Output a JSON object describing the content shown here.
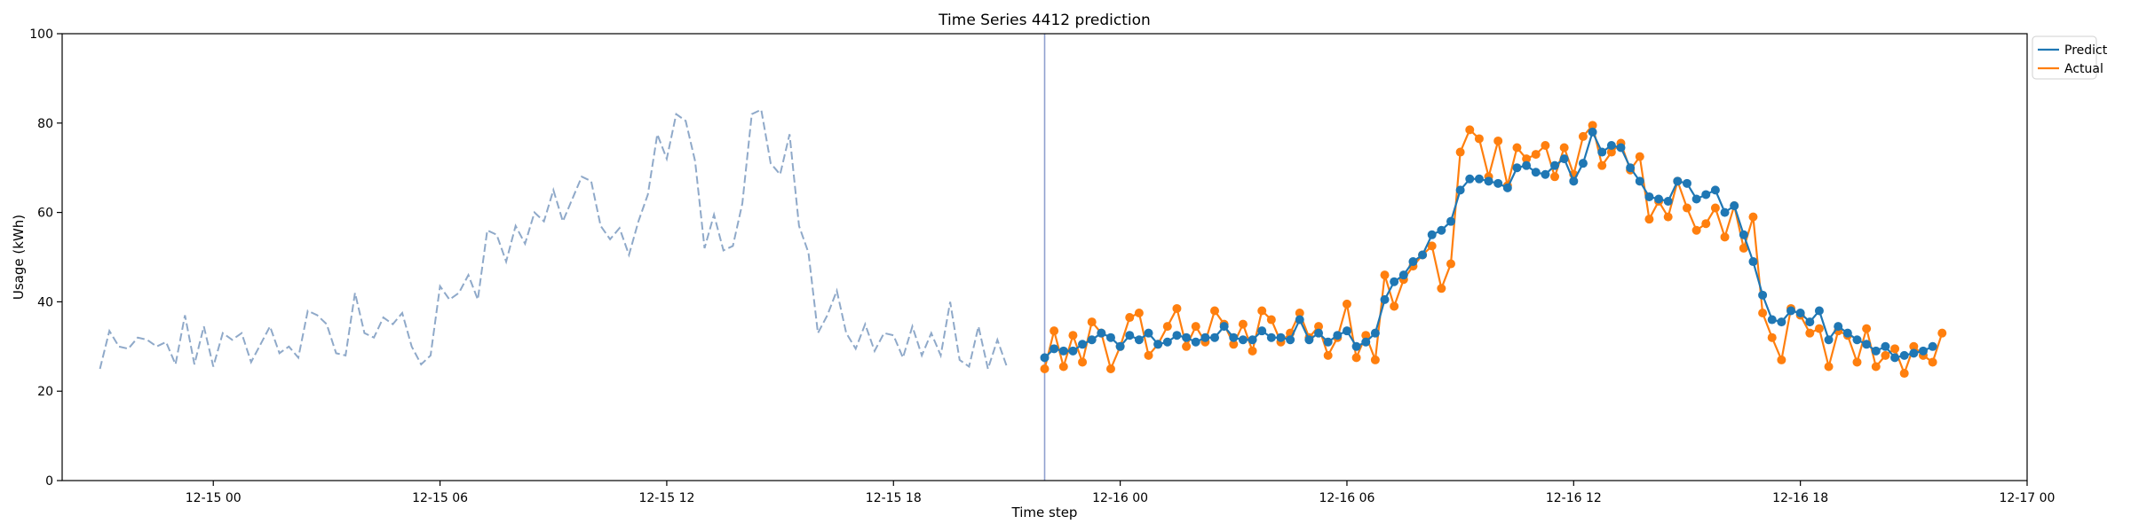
{
  "chart_data": {
    "type": "line",
    "title": "Time Series 4412 prediction",
    "xlabel": "Time step",
    "ylabel": "Usage (kWh)",
    "ylim": [
      0,
      100
    ],
    "y_ticks": [
      0,
      20,
      40,
      60,
      80,
      100
    ],
    "x_axis": {
      "unit": "hour",
      "range_start": "12-14 20:00",
      "range_end": "12-17 00:00",
      "ticks": [
        {
          "label": "12-15 00",
          "time": "12-15 00:00"
        },
        {
          "label": "12-15 06",
          "time": "12-15 06:00"
        },
        {
          "label": "12-15 12",
          "time": "12-15 12:00"
        },
        {
          "label": "12-15 18",
          "time": "12-15 18:00"
        },
        {
          "label": "12-16 00",
          "time": "12-16 00:00"
        },
        {
          "label": "12-16 06",
          "time": "12-16 06:00"
        },
        {
          "label": "12-16 12",
          "time": "12-16 12:00"
        },
        {
          "label": "12-16 18",
          "time": "12-16 18:00"
        },
        {
          "label": "12-17 00",
          "time": "12-17 00:00"
        }
      ]
    },
    "split_time": "12-15 22:00",
    "grid": false,
    "legend": {
      "position": "top-right",
      "entries": [
        "Predict",
        "Actual"
      ]
    },
    "colors": {
      "history": "#8fa9c9",
      "predict": "#1f77b4",
      "actual": "#ff7f0e",
      "split_line": "#8fa0cf"
    },
    "history": {
      "start": "12-14 21:00",
      "step_minutes": 15,
      "values": [
        25,
        33.5,
        30,
        29.5,
        32,
        31.5,
        30,
        31,
        26,
        37,
        26,
        34.5,
        25.5,
        33,
        31.5,
        33,
        26.5,
        30.5,
        34.5,
        28.5,
        30,
        27.5,
        38,
        37,
        35,
        28.5,
        28,
        42,
        33,
        32,
        36.5,
        35,
        37.5,
        30,
        26,
        28,
        43.5,
        40.5,
        42,
        46,
        40.5,
        56,
        55,
        49,
        57,
        53,
        60,
        58,
        65,
        58,
        63,
        68,
        67,
        57,
        54,
        56.5,
        50.5,
        58,
        64,
        77.5,
        72,
        82,
        80.5,
        71.5,
        52,
        59.5,
        51.5,
        52.5,
        62,
        82,
        83,
        71,
        68.5,
        77.5,
        57,
        51,
        33,
        37,
        42.5,
        33,
        29.5,
        35,
        29,
        33,
        32.5,
        27.5,
        34.5,
        28,
        33,
        28,
        40,
        27,
        25.5,
        34.5,
        25,
        31.5,
        25.5
      ]
    },
    "series": [
      {
        "name": "Predict",
        "start": "12-15 22:00",
        "step_minutes": 15,
        "values": [
          27.5,
          29.5,
          29,
          29,
          30.5,
          31.5,
          33,
          32,
          30,
          32.5,
          31.5,
          33,
          30.5,
          31,
          32.5,
          32,
          31,
          32,
          32,
          34.5,
          32,
          31.5,
          31.5,
          33.5,
          32,
          32,
          31.5,
          36,
          31.5,
          33,
          31,
          32.5,
          33.5,
          30,
          31,
          33,
          40.5,
          44.5,
          46,
          49,
          50.5,
          55,
          56,
          58,
          65,
          67.5,
          67.5,
          67,
          66.5,
          65.5,
          70,
          70.5,
          69,
          68.5,
          70.5,
          72,
          67,
          71,
          78,
          73.5,
          75,
          74.5,
          70,
          67,
          63.5,
          63,
          62.5,
          67,
          66.5,
          63,
          64,
          65,
          60,
          61.5,
          55,
          49,
          41.5,
          36,
          35.5,
          38,
          37.5,
          35.5,
          38,
          31.5,
          34.5,
          33,
          31.5,
          30.5,
          29,
          30,
          27.5,
          28,
          28.5,
          29,
          30
        ]
      },
      {
        "name": "Actual",
        "start": "12-15 22:00",
        "step_minutes": 15,
        "values": [
          25,
          33.5,
          25.5,
          32.5,
          26.5,
          35.5,
          33,
          25,
          30,
          36.5,
          37.5,
          28,
          30.5,
          34.5,
          38.5,
          30,
          34.5,
          31,
          38,
          35,
          30.5,
          35,
          29,
          38,
          36,
          31,
          33,
          37.5,
          32,
          34.5,
          28,
          32,
          39.5,
          27.5,
          32.5,
          27,
          46,
          39,
          45,
          48,
          50.5,
          52.5,
          43,
          48.5,
          73.5,
          78.5,
          76.5,
          68,
          76,
          66,
          74.5,
          72,
          73,
          75,
          68,
          74.5,
          68.5,
          77,
          79.5,
          70.5,
          73.5,
          75.5,
          69.5,
          72.5,
          58.5,
          62.5,
          59,
          67,
          61,
          56,
          57.5,
          61,
          54.5,
          61.5,
          52,
          59,
          37.5,
          32,
          27,
          38.5,
          37,
          33,
          34,
          25.5,
          33.5,
          32.5,
          26.5,
          34,
          25.5,
          28,
          29.5,
          24,
          30,
          28,
          26.5,
          33
        ]
      }
    ]
  }
}
